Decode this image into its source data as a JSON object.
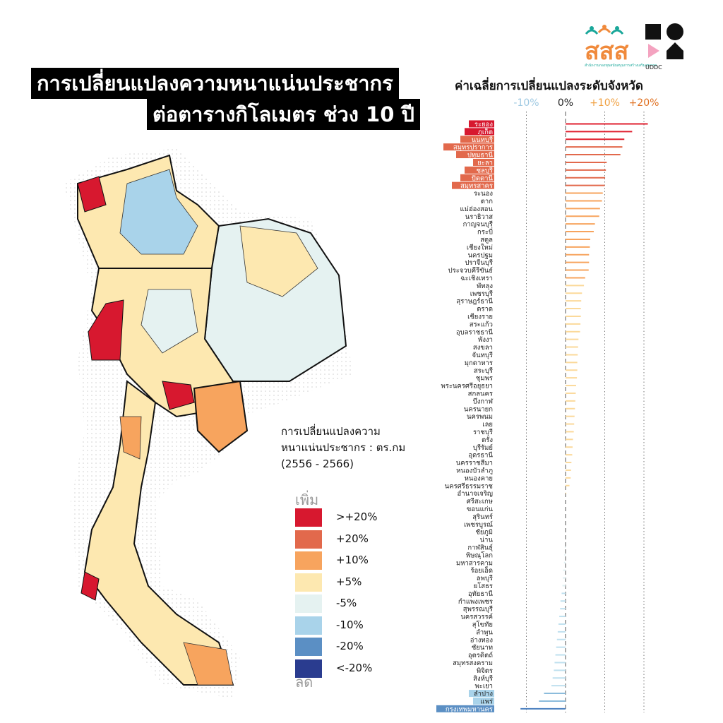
{
  "title": {
    "line1": "การเปลี่ยนแปลงความหนาแน่นประชากร",
    "line2": "ต่อตารางกิโลเมตร ช่วง 10 ปี"
  },
  "logos": {
    "sss_text": "สสส",
    "sss_subtitle": "สำนักงานกองทุนสนับสนุนการสร้างเสริมสุขภาพ",
    "uddc_text": "UDDC"
  },
  "legend": {
    "title_line1": "การเปลี่ยนแปลงความ",
    "title_line2": "หนาแน่นประชากร : ตร.กม",
    "title_line3": "(2556 - 2566)",
    "increase_label": "เพิ่ม",
    "decrease_label": "ลด",
    "items": [
      {
        "label": ">+20%",
        "color": "#d7182f"
      },
      {
        "label": "+20%",
        "color": "#e2694c"
      },
      {
        "label": "+10%",
        "color": "#f7a45e"
      },
      {
        "label": "+5%",
        "color": "#fde8b0"
      },
      {
        "label": "-5%",
        "color": "#e5f2f1"
      },
      {
        "label": "-10%",
        "color": "#a9d3ea"
      },
      {
        "label": "-20%",
        "color": "#5b8fc4"
      },
      {
        "label": "<-20%",
        "color": "#2a3c8f"
      }
    ]
  },
  "chart_data": {
    "type": "bar",
    "orientation": "horizontal",
    "title": "ค่าเฉลี่ยการเปลี่ยนแปลงระดับจังหวัด",
    "ticks": [
      {
        "value": -10,
        "label": "-10%",
        "color": "#9fc9e2"
      },
      {
        "value": 0,
        "label": "0%",
        "color": "#222222"
      },
      {
        "value": 10,
        "label": "+10%",
        "color": "#f0a040"
      },
      {
        "value": 20,
        "label": "+20%",
        "color": "#e07020"
      }
    ],
    "xlim": [
      -11.5,
      21
    ],
    "categories": [
      "ระยอง",
      "ภูเก็ต",
      "นนทบุรี",
      "สมุทรปราการ",
      "ปทุมธานี",
      "ยะลา",
      "ชลบุรี",
      "ปัตตานี",
      "สมุทรสาคร",
      "ระนอง",
      "ตาก",
      "แม่ฮ่องสอน",
      "นราธิวาส",
      "กาญจนบุรี",
      "กระบี่",
      "สตูล",
      "เชียงใหม่",
      "นครปฐม",
      "ปราจีนบุรี",
      "ประจวบคีรีขันธ์",
      "ฉะเชิงเทรา",
      "พัทลุง",
      "เพชรบุรี",
      "สุราษฎร์ธานี",
      "ตราด",
      "เชียงราย",
      "สระแก้ว",
      "อุบลราชธานี",
      "พังงา",
      "สงขลา",
      "จันทบุรี",
      "มุกดาหาร",
      "สระบุรี",
      "ชุมพร",
      "พระนครศรีอยุธยา",
      "สกลนคร",
      "บึงกาฬ",
      "นครนายก",
      "นครพนม",
      "เลย",
      "ราชบุรี",
      "ตรัง",
      "บุรีรัมย์",
      "อุดรธานี",
      "นครราชสีมา",
      "หนองบัวลำภู",
      "หนองคาย",
      "นครศรีธรรมราช",
      "อำนาจเจริญ",
      "ศรีสะเกษ",
      "ขอนแก่น",
      "สุรินทร์",
      "เพชรบูรณ์",
      "ชัยภูมิ",
      "น่าน",
      "กาฬสินธุ์",
      "พิษณุโลก",
      "มหาสารคาม",
      "ร้อยเอ็ด",
      "ลพบุรี",
      "ยโสธร",
      "อุทัยธานี",
      "กำแพงเพชร",
      "สุพรรณบุรี",
      "นครสวรรค์",
      "สุโขทัย",
      "ลำพูน",
      "อ่างทอง",
      "ชัยนาท",
      "อุตรดิตถ์",
      "สมุทรสงคราม",
      "พิจิตร",
      "สิงห์บุรี",
      "พะเยา",
      "ลำปาง",
      "แพร่",
      "กรุงเทพมหานคร"
    ],
    "values": [
      21.0,
      17.0,
      15.0,
      14.5,
      14.0,
      10.5,
      10.3,
      10.1,
      10.0,
      9.5,
      9.3,
      8.8,
      8.6,
      7.5,
      7.2,
      6.3,
      6.2,
      6.0,
      6.0,
      5.9,
      5.0,
      4.7,
      4.2,
      4.0,
      3.9,
      3.9,
      3.8,
      3.7,
      3.3,
      3.2,
      3.1,
      3.0,
      3.0,
      2.9,
      2.7,
      2.6,
      2.5,
      2.4,
      2.3,
      2.2,
      2.1,
      1.9,
      1.8,
      1.7,
      1.5,
      1.4,
      1.3,
      1.0,
      0.2,
      0.0,
      0.0,
      0.0,
      0.0,
      0.0,
      0.0,
      -0.2,
      -0.3,
      -0.4,
      -0.6,
      -0.7,
      -0.8,
      -1.0,
      -1.3,
      -1.4,
      -1.6,
      -1.8,
      -2.0,
      -2.2,
      -2.4,
      -2.6,
      -2.8,
      -3.0,
      -3.3,
      -3.6,
      -5.5,
      -6.8,
      -11.5
    ],
    "label_highlight": {
      "ระยอง": "#d7182f",
      "ภูเก็ต": "#d7182f",
      "นนทบุรี": "#e2694c",
      "สมุทรปราการ": "#e2694c",
      "ปทุมธานี": "#e2694c",
      "ยะลา": "#e2694c",
      "ชลบุรี": "#e2694c",
      "ปัตตานี": "#e2694c",
      "สมุทรสาคร": "#e2694c",
      "กรุงเทพมหานคร": "#5b8fc4",
      "ลำปาง": "#a9d3ea",
      "แพร่": "#a9d3ea"
    }
  }
}
